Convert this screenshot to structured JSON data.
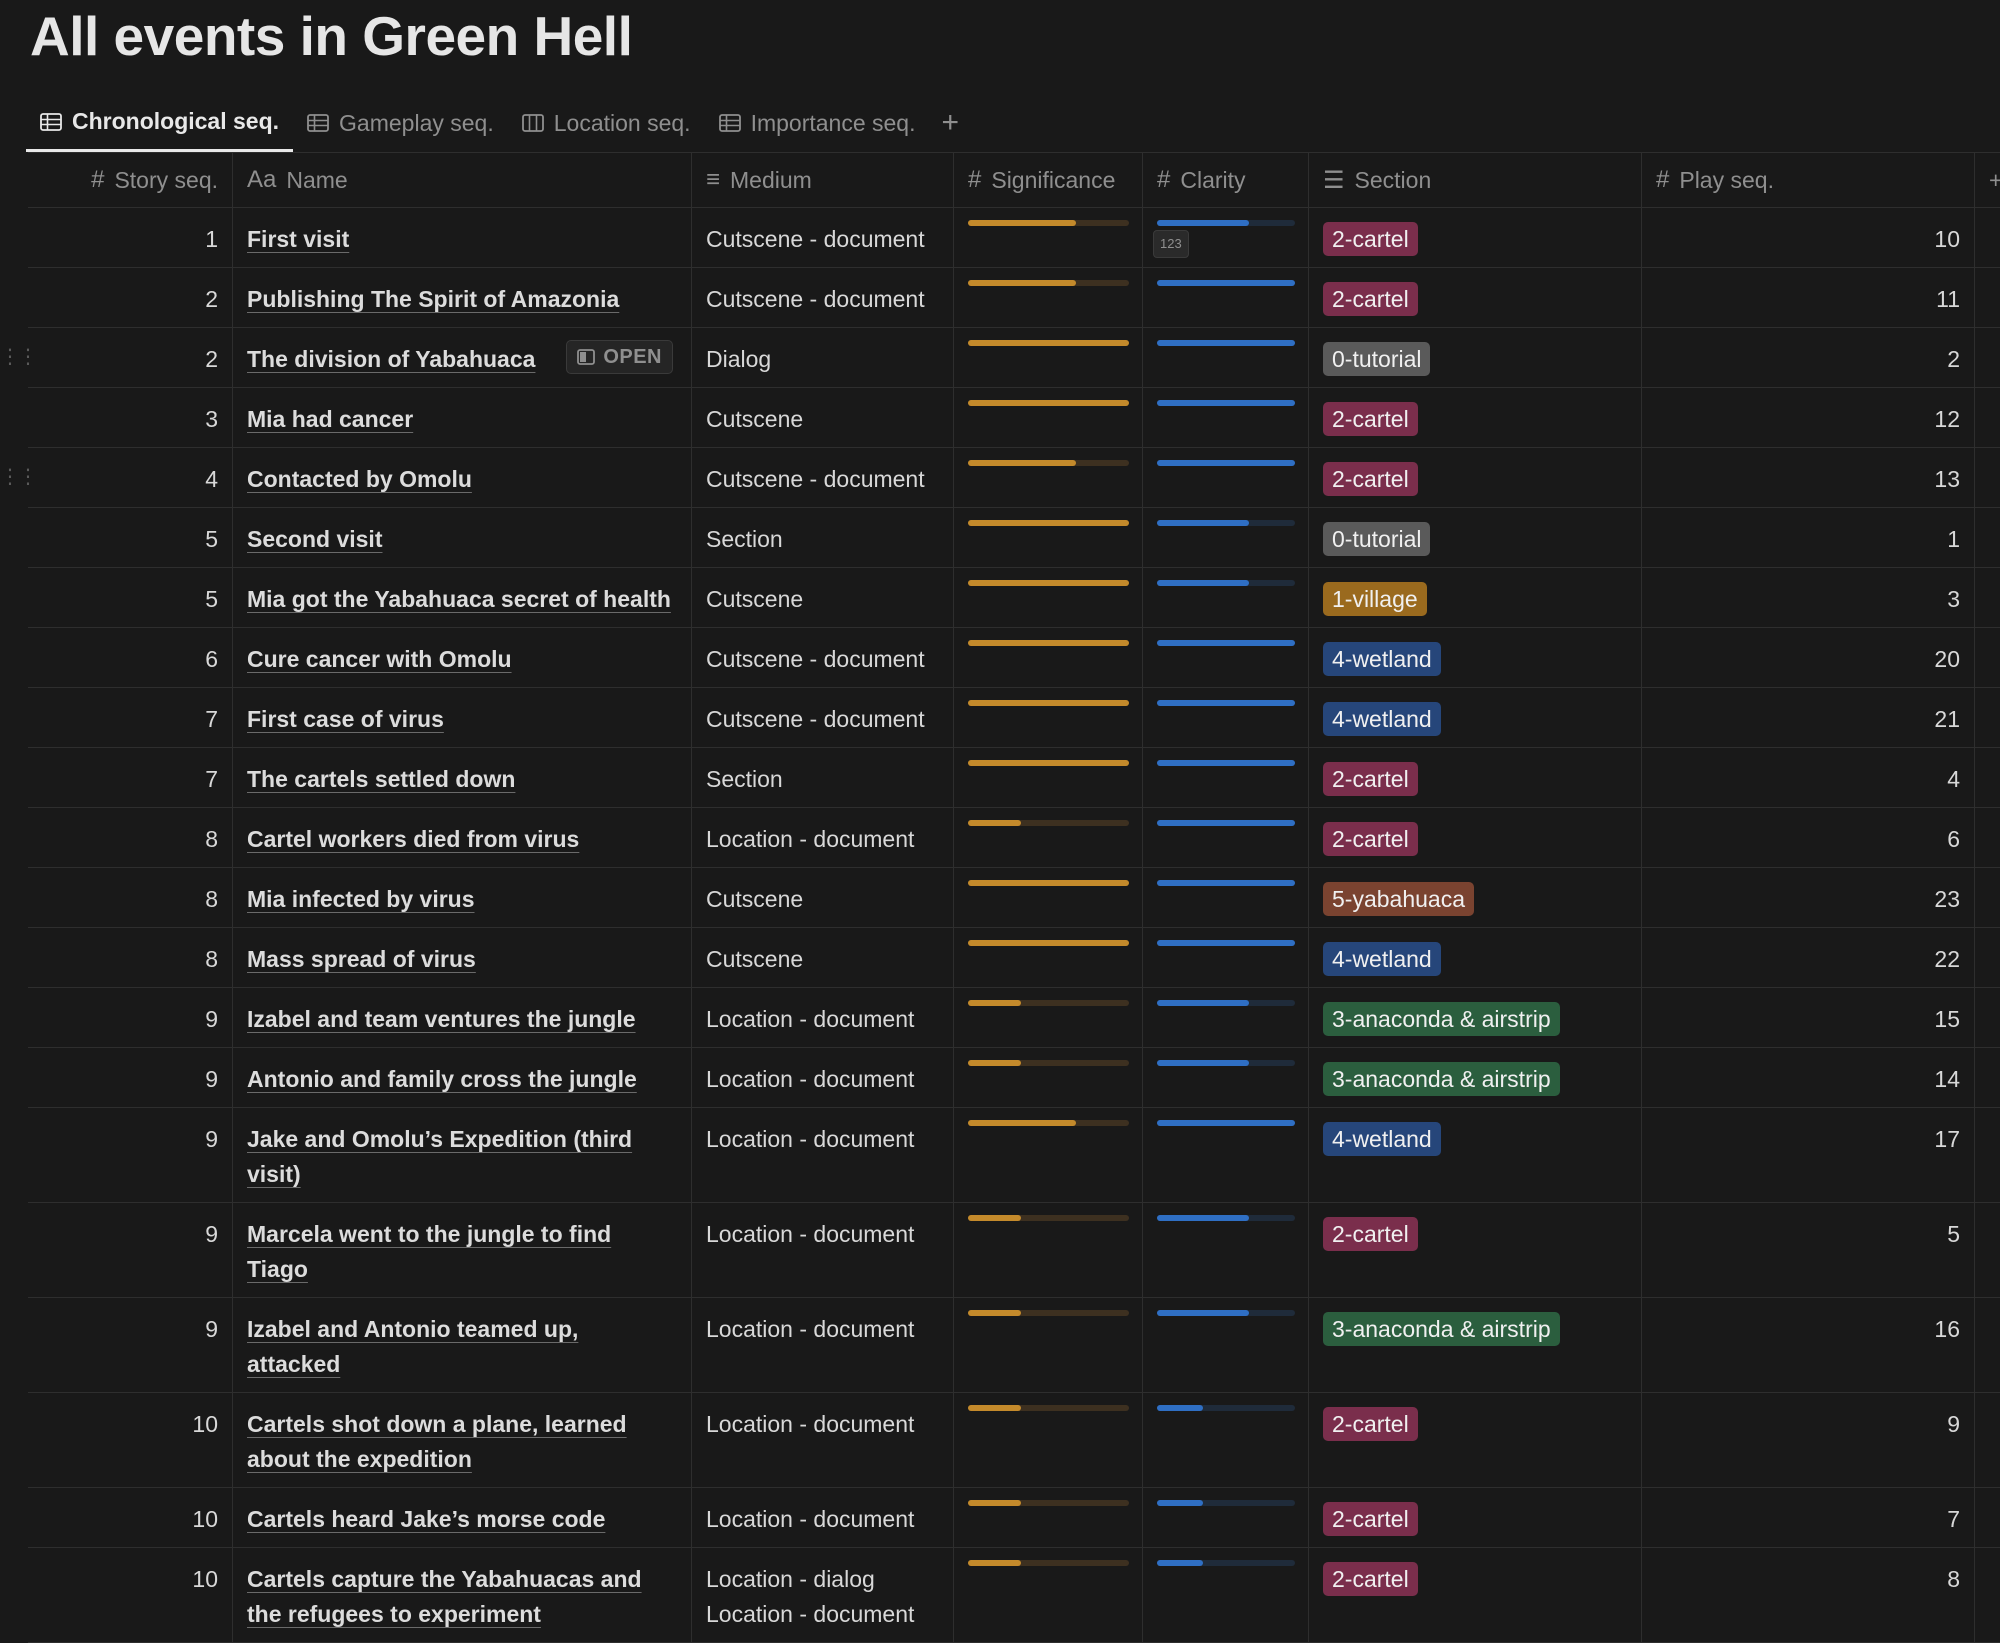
{
  "title": "All events in Green Hell",
  "tabs": [
    {
      "label": "Chronological seq.",
      "icon": "table-icon",
      "active": true
    },
    {
      "label": "Gameplay seq.",
      "icon": "table-icon",
      "active": false
    },
    {
      "label": "Location seq.",
      "icon": "board-icon",
      "active": false
    },
    {
      "label": "Importance seq.",
      "icon": "table-icon",
      "active": false
    }
  ],
  "add_view_label": "+",
  "columns": {
    "story": {
      "icon": "#",
      "label": "Story seq."
    },
    "name": {
      "icon": "Aa",
      "label": "Name"
    },
    "medium": {
      "icon": "≡",
      "label": "Medium"
    },
    "significance": {
      "icon": "#",
      "label": "Significance"
    },
    "clarity": {
      "icon": "#",
      "label": "Clarity"
    },
    "section": {
      "icon": "☰",
      "label": "Section"
    },
    "play": {
      "icon": "#",
      "label": "Play seq."
    },
    "add": "+"
  },
  "open_label": "OPEN",
  "number_badge": "123",
  "section_colors": {
    "0-tutorial": "#5a5a5a",
    "1-village": "#9a6a1e",
    "2-cartel": "#7a2e4c",
    "3-anaconda & airstrip": "#2b5e3e",
    "4-wetland": "#26467a",
    "5-yabahuaca": "#7a4330"
  },
  "rows": [
    {
      "story": "1",
      "name": "First visit",
      "medium": [
        "Cutscene - document"
      ],
      "sig": 0.67,
      "cla": 0.67,
      "section": "2-cartel",
      "play": "10",
      "badge": true
    },
    {
      "story": "2",
      "name": "Publishing The Spirit of Amazonia",
      "medium": [
        "Cutscene - document"
      ],
      "sig": 0.67,
      "cla": 1.0,
      "section": "2-cartel",
      "play": "11"
    },
    {
      "story": "2",
      "name": "The division of Yabahuaca",
      "medium": [
        "Dialog"
      ],
      "sig": 1.0,
      "cla": 1.0,
      "section": "0-tutorial",
      "play": "2",
      "open": true,
      "drag": true
    },
    {
      "story": "3",
      "name": "Mia had cancer",
      "medium": [
        "Cutscene"
      ],
      "sig": 1.0,
      "cla": 1.0,
      "section": "2-cartel",
      "play": "12"
    },
    {
      "story": "4",
      "name": "Contacted by Omolu",
      "medium": [
        "Cutscene - document"
      ],
      "sig": 0.67,
      "cla": 1.0,
      "section": "2-cartel",
      "play": "13",
      "drag": true
    },
    {
      "story": "5",
      "name": "Second visit",
      "medium": [
        "Section"
      ],
      "sig": 1.0,
      "cla": 0.67,
      "section": "0-tutorial",
      "play": "1"
    },
    {
      "story": "5",
      "name": "Mia got the Yabahuaca secret of health",
      "medium": [
        "Cutscene"
      ],
      "sig": 1.0,
      "cla": 0.67,
      "section": "1-village",
      "play": "3"
    },
    {
      "story": "6",
      "name": "Cure cancer with Omolu",
      "medium": [
        "Cutscene - document"
      ],
      "sig": 1.0,
      "cla": 1.0,
      "section": "4-wetland",
      "play": "20"
    },
    {
      "story": "7",
      "name": "First case of virus",
      "medium": [
        "Cutscene - document"
      ],
      "sig": 1.0,
      "cla": 1.0,
      "section": "4-wetland",
      "play": "21"
    },
    {
      "story": "7",
      "name": "The cartels settled down",
      "medium": [
        "Section"
      ],
      "sig": 1.0,
      "cla": 1.0,
      "section": "2-cartel",
      "play": "4"
    },
    {
      "story": "8",
      "name": "Cartel workers died from virus",
      "medium": [
        "Location - document"
      ],
      "sig": 0.33,
      "cla": 1.0,
      "section": "2-cartel",
      "play": "6"
    },
    {
      "story": "8",
      "name": "Mia infected by virus",
      "medium": [
        "Cutscene"
      ],
      "sig": 1.0,
      "cla": 1.0,
      "section": "5-yabahuaca",
      "play": "23"
    },
    {
      "story": "8",
      "name": "Mass spread of virus",
      "medium": [
        "Cutscene"
      ],
      "sig": 1.0,
      "cla": 1.0,
      "section": "4-wetland",
      "play": "22"
    },
    {
      "story": "9",
      "name": "Izabel and team ventures the jungle",
      "medium": [
        "Location - document"
      ],
      "sig": 0.33,
      "cla": 0.67,
      "section": "3-anaconda & airstrip",
      "play": "15"
    },
    {
      "story": "9",
      "name": "Antonio and family cross the jungle",
      "medium": [
        "Location - document"
      ],
      "sig": 0.33,
      "cla": 0.67,
      "section": "3-anaconda & airstrip",
      "play": "14"
    },
    {
      "story": "9",
      "name": "Jake and Omolu’s Expedition (third visit)",
      "medium": [
        "Location - document"
      ],
      "sig": 0.67,
      "cla": 1.0,
      "section": "4-wetland",
      "play": "17"
    },
    {
      "story": "9",
      "name": "Marcela went to the jungle to find Tiago",
      "medium": [
        "Location - document"
      ],
      "sig": 0.33,
      "cla": 0.67,
      "section": "2-cartel",
      "play": "5"
    },
    {
      "story": "9",
      "name": "Izabel and Antonio teamed up, attacked",
      "medium": [
        "Location - document"
      ],
      "sig": 0.33,
      "cla": 0.67,
      "section": "3-anaconda & airstrip",
      "play": "16"
    },
    {
      "story": "10",
      "name": "Cartels shot down a plane, learned about the expedition",
      "medium": [
        "Location - document"
      ],
      "sig": 0.33,
      "cla": 0.33,
      "section": "2-cartel",
      "play": "9"
    },
    {
      "story": "10",
      "name": "Cartels heard Jake’s morse code",
      "medium": [
        "Location - document"
      ],
      "sig": 0.33,
      "cla": 0.33,
      "section": "2-cartel",
      "play": "7"
    },
    {
      "story": "10",
      "name": "Cartels capture the Yabahuacas and the refugees to experiment",
      "medium": [
        "Location - dialog",
        "Location - document"
      ],
      "sig": 0.33,
      "cla": 0.33,
      "section": "2-cartel",
      "play": "8"
    }
  ]
}
